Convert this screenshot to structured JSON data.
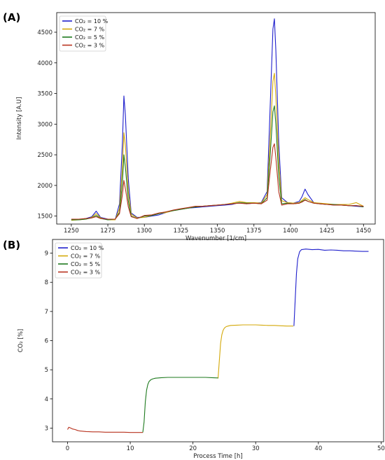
{
  "chart_data": [
    {
      "panel_label": "(A)",
      "type": "line",
      "title": "",
      "xlabel": "Wavenumber [1/cm]",
      "ylabel": "Intensity [A.U]",
      "xlim": [
        1240,
        1458
      ],
      "ylim": [
        1370,
        4820
      ],
      "xticks": [
        1250,
        1275,
        1300,
        1325,
        1350,
        1375,
        1400,
        1425,
        1450
      ],
      "yticks": [
        1500,
        2000,
        2500,
        3000,
        3500,
        4000,
        4500
      ],
      "grid": false,
      "legend_position": "top-left",
      "series": [
        {
          "name": "CO₂ = 10 %",
          "color": "#1f1fcc",
          "x": [
            1250,
            1255,
            1260,
            1264,
            1267,
            1270,
            1275,
            1280,
            1283,
            1285,
            1286,
            1287,
            1289,
            1291,
            1295,
            1300,
            1305,
            1310,
            1315,
            1320,
            1325,
            1330,
            1335,
            1340,
            1345,
            1350,
            1355,
            1360,
            1365,
            1370,
            1375,
            1380,
            1384,
            1386,
            1388,
            1389,
            1390,
            1392,
            1394,
            1398,
            1402,
            1406,
            1408,
            1410,
            1412,
            1416,
            1420,
            1425,
            1430,
            1435,
            1440,
            1445,
            1450
          ],
          "y": [
            1440,
            1440,
            1460,
            1490,
            1580,
            1480,
            1450,
            1440,
            1700,
            2700,
            3460,
            3150,
            2100,
            1550,
            1480,
            1480,
            1500,
            1520,
            1560,
            1590,
            1610,
            1630,
            1640,
            1650,
            1660,
            1670,
            1680,
            1690,
            1720,
            1700,
            1710,
            1720,
            1900,
            3200,
            4550,
            4720,
            4200,
            2700,
            1800,
            1720,
            1710,
            1740,
            1820,
            1940,
            1850,
            1720,
            1700,
            1690,
            1680,
            1680,
            1670,
            1660,
            1650
          ]
        },
        {
          "name": "CO₂ = 7 %",
          "color": "#d4a90a",
          "x": [
            1250,
            1255,
            1260,
            1264,
            1267,
            1270,
            1275,
            1280,
            1283,
            1285,
            1286,
            1287,
            1289,
            1291,
            1295,
            1300,
            1305,
            1310,
            1315,
            1320,
            1325,
            1330,
            1335,
            1340,
            1345,
            1350,
            1355,
            1360,
            1365,
            1370,
            1375,
            1380,
            1384,
            1386,
            1388,
            1389,
            1390,
            1392,
            1394,
            1398,
            1402,
            1406,
            1408,
            1410,
            1412,
            1416,
            1420,
            1425,
            1430,
            1435,
            1440,
            1445,
            1450
          ],
          "y": [
            1430,
            1440,
            1450,
            1480,
            1540,
            1470,
            1440,
            1440,
            1620,
            2300,
            2860,
            2650,
            1900,
            1530,
            1470,
            1480,
            1510,
            1540,
            1560,
            1590,
            1610,
            1630,
            1650,
            1660,
            1670,
            1680,
            1690,
            1710,
            1740,
            1720,
            1720,
            1710,
            1850,
            2700,
            3700,
            3830,
            3450,
            2400,
            1750,
            1720,
            1710,
            1720,
            1760,
            1800,
            1770,
            1720,
            1710,
            1700,
            1690,
            1690,
            1690,
            1720,
            1660
          ]
        },
        {
          "name": "CO₂ = 5 %",
          "color": "#1e7a1e",
          "x": [
            1250,
            1255,
            1260,
            1264,
            1267,
            1270,
            1275,
            1280,
            1283,
            1285,
            1286,
            1287,
            1289,
            1291,
            1295,
            1300,
            1305,
            1310,
            1315,
            1320,
            1325,
            1330,
            1335,
            1340,
            1345,
            1350,
            1355,
            1360,
            1365,
            1370,
            1375,
            1380,
            1384,
            1386,
            1388,
            1389,
            1390,
            1392,
            1394,
            1398,
            1402,
            1406,
            1408,
            1410,
            1412,
            1416,
            1420,
            1425,
            1430,
            1435,
            1440,
            1445,
            1450
          ],
          "y": [
            1440,
            1440,
            1450,
            1470,
            1510,
            1460,
            1440,
            1450,
            1560,
            2050,
            2500,
            2300,
            1750,
            1500,
            1460,
            1500,
            1510,
            1540,
            1570,
            1590,
            1610,
            1630,
            1650,
            1660,
            1670,
            1680,
            1690,
            1700,
            1720,
            1710,
            1710,
            1700,
            1800,
            2450,
            3200,
            3300,
            3000,
            2150,
            1700,
            1710,
            1700,
            1710,
            1740,
            1770,
            1740,
            1710,
            1700,
            1690,
            1690,
            1680,
            1670,
            1670,
            1650
          ]
        },
        {
          "name": "CO₂ = 3 %",
          "color": "#b8321e",
          "x": [
            1250,
            1255,
            1260,
            1264,
            1267,
            1270,
            1275,
            1280,
            1283,
            1285,
            1286,
            1287,
            1289,
            1291,
            1295,
            1300,
            1305,
            1310,
            1315,
            1320,
            1325,
            1330,
            1335,
            1340,
            1345,
            1350,
            1355,
            1360,
            1365,
            1370,
            1375,
            1380,
            1384,
            1386,
            1388,
            1389,
            1390,
            1392,
            1394,
            1398,
            1402,
            1406,
            1408,
            1410,
            1412,
            1416,
            1420,
            1425,
            1430,
            1435,
            1440,
            1445,
            1450
          ],
          "y": [
            1450,
            1450,
            1460,
            1470,
            1490,
            1460,
            1450,
            1450,
            1540,
            1850,
            2080,
            1950,
            1650,
            1490,
            1460,
            1510,
            1520,
            1550,
            1570,
            1600,
            1620,
            1640,
            1660,
            1660,
            1670,
            1680,
            1690,
            1700,
            1710,
            1700,
            1710,
            1700,
            1760,
            2200,
            2620,
            2680,
            2450,
            1900,
            1680,
            1700,
            1700,
            1710,
            1730,
            1760,
            1740,
            1710,
            1700,
            1690,
            1680,
            1680,
            1670,
            1670,
            1660
          ]
        }
      ]
    },
    {
      "panel_label": "(B)",
      "type": "line",
      "title": "",
      "xlabel": "Process Time [h]",
      "ylabel": "CO₂ [%]",
      "xlim": [
        -2.4,
        50.4
      ],
      "ylim": [
        2.53,
        9.47
      ],
      "xticks": [
        0,
        10,
        20,
        30,
        40,
        50
      ],
      "yticks": [
        3,
        4,
        5,
        6,
        7,
        8,
        9
      ],
      "grid": false,
      "legend_position": "top-left",
      "series": [
        {
          "name": "CO₂ = 10 %",
          "color": "#1f1fcc",
          "x": [
            36.1,
            36.3,
            36.5,
            36.7,
            37.0,
            37.3,
            37.6,
            38.0,
            39.0,
            40.0,
            41.0,
            42.0,
            43.0,
            44.0,
            45.0,
            46.0,
            47.0,
            48.0
          ],
          "y": [
            6.5,
            7.4,
            8.3,
            8.8,
            9.05,
            9.12,
            9.13,
            9.14,
            9.12,
            9.13,
            9.1,
            9.11,
            9.1,
            9.08,
            9.08,
            9.07,
            9.06,
            9.06
          ]
        },
        {
          "name": "CO₂ = 7 %",
          "color": "#d4a90a",
          "x": [
            24.0,
            24.2,
            24.4,
            24.6,
            24.8,
            25.0,
            25.3,
            25.6,
            26.0,
            27.0,
            28.0,
            29.0,
            30.0,
            31.0,
            32.0,
            33.0,
            34.0,
            35.0,
            36.0
          ],
          "y": [
            4.7,
            5.3,
            5.9,
            6.2,
            6.35,
            6.43,
            6.48,
            6.5,
            6.52,
            6.53,
            6.54,
            6.54,
            6.54,
            6.53,
            6.52,
            6.52,
            6.51,
            6.5,
            6.5
          ]
        },
        {
          "name": "CO₂ = 5 %",
          "color": "#1e7a1e",
          "x": [
            12.0,
            12.2,
            12.4,
            12.6,
            12.8,
            13.0,
            13.3,
            13.6,
            14.0,
            15.0,
            16.0,
            17.0,
            18.0,
            19.0,
            20.0,
            21.0,
            22.0,
            23.0,
            24.0
          ],
          "y": [
            2.85,
            3.2,
            3.9,
            4.3,
            4.5,
            4.6,
            4.66,
            4.69,
            4.71,
            4.73,
            4.74,
            4.74,
            4.74,
            4.74,
            4.74,
            4.74,
            4.74,
            4.73,
            4.72
          ]
        },
        {
          "name": "CO₂ = 3 %",
          "color": "#b8321e",
          "x": [
            0.0,
            0.2,
            0.5,
            0.8,
            1.2,
            1.6,
            2.0,
            3.0,
            4.0,
            5.0,
            6.0,
            7.0,
            8.0,
            9.0,
            10.0,
            11.0,
            12.0
          ],
          "y": [
            2.95,
            3.03,
            3.0,
            2.97,
            2.95,
            2.92,
            2.9,
            2.88,
            2.87,
            2.87,
            2.86,
            2.86,
            2.86,
            2.86,
            2.85,
            2.85,
            2.85
          ]
        }
      ]
    }
  ]
}
